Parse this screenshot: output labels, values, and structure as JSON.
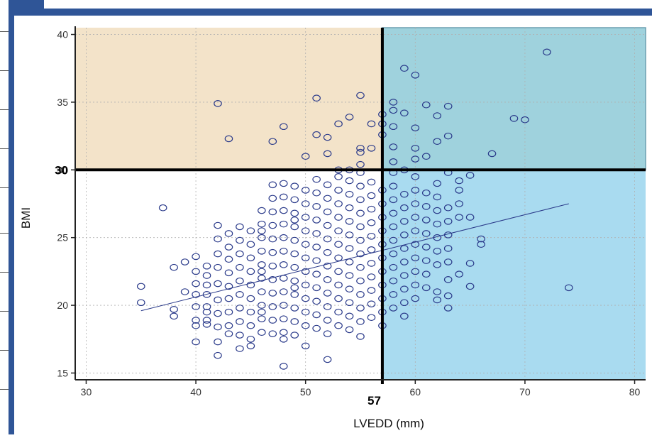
{
  "chart_data": {
    "type": "scatter",
    "xlabel": "LVEDD (mm)",
    "ylabel": "BMI",
    "xlim": [
      29,
      81
    ],
    "ylim": [
      14.5,
      40.5
    ],
    "xticks": [
      "30",
      "40",
      "50",
      "60",
      "70",
      "80"
    ],
    "yticks": [
      "15",
      "20",
      "25",
      "30",
      "35",
      "40"
    ],
    "thresholds": {
      "x": 57,
      "y": 30,
      "x_label": "57",
      "y_label": "30"
    },
    "regions": {
      "upper_left_color": "#f3e3c9",
      "upper_right_color": "#9fd2dd",
      "lower_right_color": "#a9dbf0",
      "lower_left_color": "#ffffff"
    },
    "marker_color": "#2a3a8a",
    "trend_line": {
      "x": [
        35,
        74
      ],
      "y": [
        19.6,
        27.5
      ]
    },
    "points": [
      [
        35,
        21.4
      ],
      [
        35,
        20.2
      ],
      [
        37,
        27.2
      ],
      [
        38,
        22.8
      ],
      [
        38,
        19.7
      ],
      [
        38,
        19.2
      ],
      [
        39,
        21.0
      ],
      [
        39,
        23.2
      ],
      [
        40,
        23.6
      ],
      [
        40,
        22.5
      ],
      [
        40,
        21.6
      ],
      [
        40,
        20.8
      ],
      [
        40,
        19.9
      ],
      [
        40,
        18.9
      ],
      [
        40,
        18.5
      ],
      [
        40,
        17.3
      ],
      [
        41,
        22.9
      ],
      [
        41,
        22.2
      ],
      [
        41,
        21.5
      ],
      [
        41,
        20.8
      ],
      [
        41,
        19.9
      ],
      [
        41,
        19.5
      ],
      [
        41,
        18.6
      ],
      [
        41,
        18.9
      ],
      [
        42,
        25.9
      ],
      [
        42,
        24.9
      ],
      [
        42,
        23.8
      ],
      [
        42,
        22.8
      ],
      [
        42,
        21.6
      ],
      [
        42,
        20.4
      ],
      [
        42,
        19.4
      ],
      [
        42,
        18.4
      ],
      [
        42,
        17.3
      ],
      [
        42,
        16.3
      ],
      [
        42,
        34.9
      ],
      [
        43,
        25.3
      ],
      [
        43,
        24.3
      ],
      [
        43,
        23.4
      ],
      [
        43,
        22.4
      ],
      [
        43,
        21.4
      ],
      [
        43,
        20.5
      ],
      [
        43,
        19.5
      ],
      [
        43,
        18.5
      ],
      [
        43,
        17.9
      ],
      [
        43,
        32.3
      ],
      [
        44,
        25.8
      ],
      [
        44,
        24.8
      ],
      [
        44,
        23.8
      ],
      [
        44,
        22.8
      ],
      [
        44,
        21.8
      ],
      [
        44,
        20.8
      ],
      [
        44,
        19.8
      ],
      [
        44,
        18.8
      ],
      [
        44,
        17.8
      ],
      [
        44,
        16.8
      ],
      [
        45,
        25.5
      ],
      [
        45,
        24.5
      ],
      [
        45,
        23.5
      ],
      [
        45,
        22.5
      ],
      [
        45,
        21.5
      ],
      [
        45,
        20.5
      ],
      [
        45,
        19.5
      ],
      [
        45,
        18.5
      ],
      [
        45,
        17.5
      ],
      [
        45,
        17.0
      ],
      [
        46,
        27.0
      ],
      [
        46,
        26.0
      ],
      [
        46,
        25.0
      ],
      [
        46,
        24.0
      ],
      [
        46,
        23.0
      ],
      [
        46,
        22.0
      ],
      [
        46,
        21.0
      ],
      [
        46,
        20.0
      ],
      [
        46,
        19.0
      ],
      [
        46,
        18.0
      ],
      [
        46,
        25.5
      ],
      [
        46,
        22.5
      ],
      [
        46,
        19.5
      ],
      [
        47,
        28.9
      ],
      [
        47,
        27.9
      ],
      [
        47,
        26.9
      ],
      [
        47,
        25.9
      ],
      [
        47,
        24.9
      ],
      [
        47,
        23.9
      ],
      [
        47,
        22.9
      ],
      [
        47,
        21.9
      ],
      [
        47,
        20.9
      ],
      [
        47,
        19.9
      ],
      [
        47,
        18.9
      ],
      [
        47,
        17.9
      ],
      [
        47,
        32.1
      ],
      [
        48,
        29.0
      ],
      [
        48,
        28.0
      ],
      [
        48,
        27.0
      ],
      [
        48,
        26.0
      ],
      [
        48,
        25.0
      ],
      [
        48,
        24.0
      ],
      [
        48,
        23.0
      ],
      [
        48,
        22.0
      ],
      [
        48,
        21.0
      ],
      [
        48,
        20.0
      ],
      [
        48,
        19.0
      ],
      [
        48,
        18.0
      ],
      [
        48,
        17.5
      ],
      [
        48,
        15.5
      ],
      [
        48,
        33.2
      ],
      [
        49,
        28.8
      ],
      [
        49,
        27.8
      ],
      [
        49,
        26.8
      ],
      [
        49,
        25.8
      ],
      [
        49,
        24.8
      ],
      [
        49,
        23.8
      ],
      [
        49,
        22.8
      ],
      [
        49,
        21.8
      ],
      [
        49,
        20.8
      ],
      [
        49,
        19.8
      ],
      [
        49,
        18.8
      ],
      [
        49,
        17.8
      ],
      [
        49,
        26.3
      ],
      [
        49,
        21.3
      ],
      [
        50,
        28.5
      ],
      [
        50,
        27.5
      ],
      [
        50,
        26.5
      ],
      [
        50,
        25.5
      ],
      [
        50,
        24.5
      ],
      [
        50,
        23.5
      ],
      [
        50,
        22.5
      ],
      [
        50,
        21.5
      ],
      [
        50,
        20.5
      ],
      [
        50,
        19.5
      ],
      [
        50,
        18.5
      ],
      [
        50,
        17.0
      ],
      [
        50,
        31.0
      ],
      [
        51,
        29.3
      ],
      [
        51,
        28.3
      ],
      [
        51,
        27.3
      ],
      [
        51,
        26.3
      ],
      [
        51,
        25.3
      ],
      [
        51,
        24.3
      ],
      [
        51,
        23.3
      ],
      [
        51,
        22.3
      ],
      [
        51,
        21.3
      ],
      [
        51,
        20.3
      ],
      [
        51,
        19.3
      ],
      [
        51,
        18.3
      ],
      [
        51,
        35.3
      ],
      [
        51,
        32.6
      ],
      [
        52,
        28.9
      ],
      [
        52,
        27.9
      ],
      [
        52,
        26.9
      ],
      [
        52,
        25.9
      ],
      [
        52,
        24.9
      ],
      [
        52,
        23.9
      ],
      [
        52,
        22.9
      ],
      [
        52,
        21.9
      ],
      [
        52,
        20.9
      ],
      [
        52,
        19.9
      ],
      [
        52,
        18.9
      ],
      [
        52,
        17.9
      ],
      [
        52,
        16.0
      ],
      [
        52,
        32.4
      ],
      [
        52,
        31.2
      ],
      [
        53,
        29.5
      ],
      [
        53,
        28.5
      ],
      [
        53,
        27.5
      ],
      [
        53,
        26.5
      ],
      [
        53,
        25.5
      ],
      [
        53,
        24.5
      ],
      [
        53,
        23.5
      ],
      [
        53,
        22.5
      ],
      [
        53,
        21.5
      ],
      [
        53,
        20.5
      ],
      [
        53,
        19.5
      ],
      [
        53,
        18.5
      ],
      [
        53,
        30.0
      ],
      [
        53,
        33.4
      ],
      [
        54,
        29.2
      ],
      [
        54,
        28.2
      ],
      [
        54,
        27.2
      ],
      [
        54,
        26.2
      ],
      [
        54,
        25.2
      ],
      [
        54,
        24.2
      ],
      [
        54,
        23.2
      ],
      [
        54,
        22.2
      ],
      [
        54,
        21.2
      ],
      [
        54,
        20.2
      ],
      [
        54,
        19.2
      ],
      [
        54,
        18.2
      ],
      [
        54,
        30.0
      ],
      [
        54,
        33.9
      ],
      [
        55,
        29.8
      ],
      [
        55,
        28.8
      ],
      [
        55,
        27.8
      ],
      [
        55,
        26.8
      ],
      [
        55,
        25.8
      ],
      [
        55,
        24.8
      ],
      [
        55,
        23.8
      ],
      [
        55,
        22.8
      ],
      [
        55,
        21.8
      ],
      [
        55,
        20.8
      ],
      [
        55,
        19.8
      ],
      [
        55,
        18.8
      ],
      [
        55,
        17.7
      ],
      [
        55,
        35.5
      ],
      [
        55,
        31.6
      ],
      [
        55,
        31.3
      ],
      [
        55,
        30.4
      ],
      [
        56,
        29.1
      ],
      [
        56,
        28.1
      ],
      [
        56,
        27.1
      ],
      [
        56,
        26.1
      ],
      [
        56,
        25.1
      ],
      [
        56,
        24.1
      ],
      [
        56,
        23.1
      ],
      [
        56,
        22.1
      ],
      [
        56,
        21.1
      ],
      [
        56,
        20.1
      ],
      [
        56,
        19.1
      ],
      [
        56,
        31.6
      ],
      [
        56,
        33.4
      ],
      [
        57,
        28.5
      ],
      [
        57,
        27.5
      ],
      [
        57,
        26.5
      ],
      [
        57,
        25.5
      ],
      [
        57,
        24.5
      ],
      [
        57,
        23.5
      ],
      [
        57,
        22.5
      ],
      [
        57,
        21.5
      ],
      [
        57,
        20.5
      ],
      [
        57,
        19.5
      ],
      [
        57,
        18.5
      ],
      [
        57,
        34.1
      ],
      [
        57,
        33.4
      ],
      [
        57,
        32.6
      ],
      [
        58,
        29.8
      ],
      [
        58,
        28.8
      ],
      [
        58,
        27.8
      ],
      [
        58,
        26.8
      ],
      [
        58,
        25.8
      ],
      [
        58,
        24.8
      ],
      [
        58,
        23.8
      ],
      [
        58,
        22.8
      ],
      [
        58,
        21.8
      ],
      [
        58,
        20.8
      ],
      [
        58,
        19.8
      ],
      [
        58,
        35.0
      ],
      [
        58,
        34.4
      ],
      [
        58,
        33.2
      ],
      [
        58,
        31.7
      ],
      [
        58,
        30.6
      ],
      [
        59,
        28.2
      ],
      [
        59,
        27.2
      ],
      [
        59,
        26.2
      ],
      [
        59,
        25.2
      ],
      [
        59,
        24.2
      ],
      [
        59,
        23.2
      ],
      [
        59,
        22.2
      ],
      [
        59,
        21.2
      ],
      [
        59,
        20.2
      ],
      [
        59,
        19.2
      ],
      [
        59,
        37.5
      ],
      [
        59,
        34.2
      ],
      [
        59,
        30.0
      ],
      [
        60,
        29.5
      ],
      [
        60,
        28.5
      ],
      [
        60,
        27.5
      ],
      [
        60,
        26.5
      ],
      [
        60,
        25.5
      ],
      [
        60,
        24.5
      ],
      [
        60,
        23.5
      ],
      [
        60,
        22.5
      ],
      [
        60,
        21.5
      ],
      [
        60,
        20.5
      ],
      [
        60,
        37.0
      ],
      [
        60,
        33.1
      ],
      [
        60,
        31.6
      ],
      [
        60,
        30.8
      ],
      [
        61,
        28.3
      ],
      [
        61,
        27.3
      ],
      [
        61,
        26.3
      ],
      [
        61,
        25.3
      ],
      [
        61,
        24.3
      ],
      [
        61,
        23.3
      ],
      [
        61,
        22.3
      ],
      [
        61,
        21.3
      ],
      [
        61,
        34.8
      ],
      [
        61,
        31.0
      ],
      [
        62,
        29.0
      ],
      [
        62,
        28.0
      ],
      [
        62,
        27.0
      ],
      [
        62,
        26.0
      ],
      [
        62,
        25.0
      ],
      [
        62,
        24.0
      ],
      [
        62,
        23.0
      ],
      [
        62,
        21.0
      ],
      [
        62,
        20.4
      ],
      [
        62,
        34.0
      ],
      [
        62,
        32.1
      ],
      [
        63,
        29.8
      ],
      [
        63,
        27.2
      ],
      [
        63,
        26.2
      ],
      [
        63,
        25.2
      ],
      [
        63,
        24.2
      ],
      [
        63,
        23.2
      ],
      [
        63,
        21.9
      ],
      [
        63,
        20.7
      ],
      [
        63,
        19.8
      ],
      [
        63,
        34.7
      ],
      [
        63,
        32.5
      ],
      [
        64,
        28.5
      ],
      [
        64,
        27.5
      ],
      [
        64,
        26.5
      ],
      [
        64,
        22.3
      ],
      [
        64,
        29.2
      ],
      [
        65,
        29.6
      ],
      [
        65,
        26.5
      ],
      [
        65,
        23.1
      ],
      [
        65,
        21.4
      ],
      [
        66,
        24.9
      ],
      [
        66,
        24.5
      ],
      [
        67,
        31.2
      ],
      [
        69,
        33.8
      ],
      [
        70,
        33.7
      ],
      [
        72,
        38.7
      ],
      [
        74,
        21.3
      ]
    ]
  }
}
